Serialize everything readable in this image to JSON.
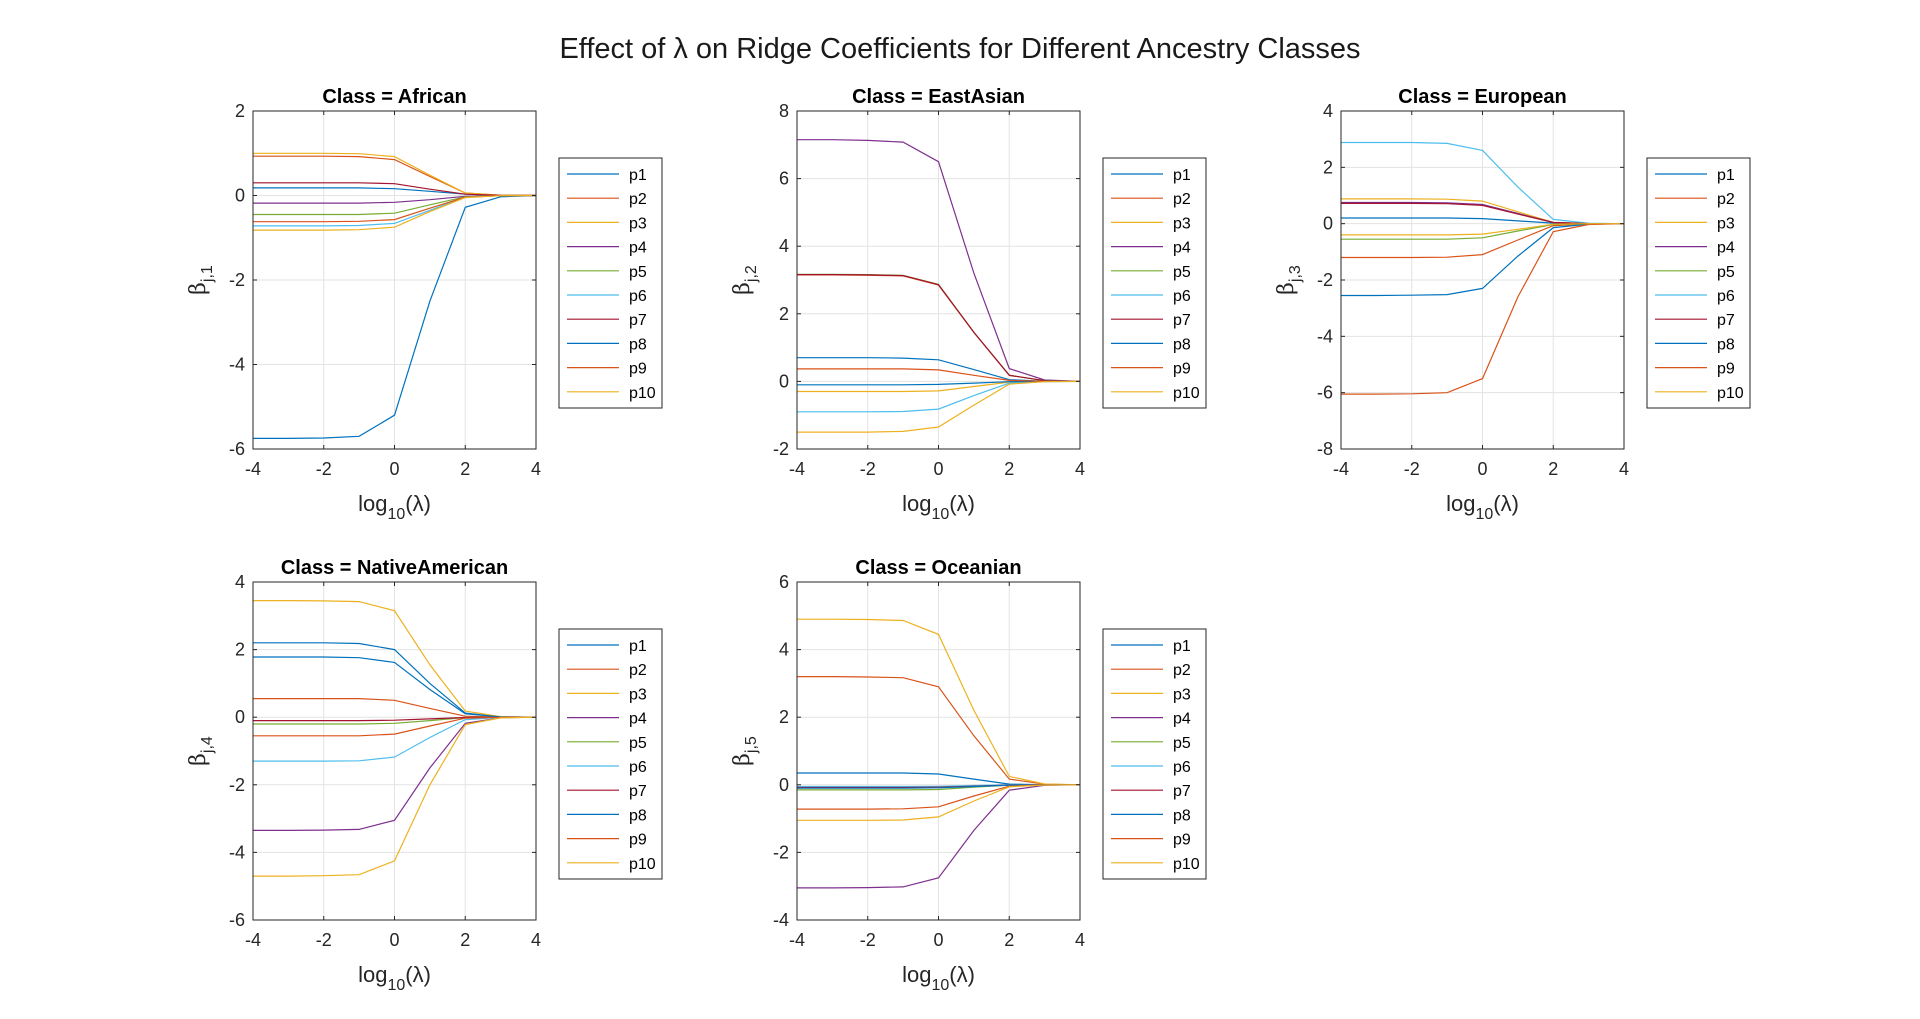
{
  "figure": {
    "title": "Effect of λ on Ridge Coefficients for Different Ancestry Classes"
  },
  "colors": {
    "p1": "#0072BD",
    "p2": "#D95319",
    "p3": "#EDB120",
    "p4": "#7E2F8E",
    "p5": "#77AC30",
    "p6": "#4DBEEE",
    "p7": "#A2142F",
    "p8": "#0072BD",
    "p9": "#D95319",
    "p10": "#EDB120"
  },
  "chart_data": [
    {
      "type": "line",
      "title": "Class = African",
      "xlabel": "log10(λ)",
      "ylabel": "βj,1",
      "ylabel_sub": "j,1",
      "xlim": [
        -4,
        4
      ],
      "ylim": [
        -6,
        2
      ],
      "xticks": [
        -4,
        -2,
        0,
        2,
        4
      ],
      "yticks": [
        -6,
        -4,
        -2,
        0,
        2
      ],
      "grid": true,
      "legend_position": "right-outside",
      "x": [
        -4,
        -3,
        -2,
        -1,
        0,
        1,
        2,
        3,
        4
      ],
      "series": [
        {
          "name": "p1",
          "values": [
            0.18,
            0.18,
            0.18,
            0.18,
            0.16,
            0.1,
            0.03,
            0.005,
            0
          ]
        },
        {
          "name": "p2",
          "values": [
            0.93,
            0.93,
            0.93,
            0.92,
            0.85,
            0.45,
            0.06,
            0.007,
            0
          ]
        },
        {
          "name": "p3",
          "values": [
            1.0,
            1.0,
            1.0,
            0.99,
            0.92,
            0.48,
            0.06,
            0.007,
            0
          ]
        },
        {
          "name": "p4",
          "values": [
            -0.18,
            -0.18,
            -0.18,
            -0.18,
            -0.16,
            -0.1,
            -0.02,
            -0.003,
            0
          ]
        },
        {
          "name": "p5",
          "values": [
            -0.45,
            -0.45,
            -0.45,
            -0.45,
            -0.42,
            -0.22,
            -0.03,
            -0.003,
            0
          ]
        },
        {
          "name": "p6",
          "values": [
            -0.72,
            -0.72,
            -0.72,
            -0.71,
            -0.66,
            -0.35,
            -0.04,
            -0.004,
            0
          ]
        },
        {
          "name": "p7",
          "values": [
            0.3,
            0.3,
            0.3,
            0.3,
            0.28,
            0.15,
            0.03,
            0.003,
            0
          ]
        },
        {
          "name": "p8",
          "values": [
            -5.75,
            -5.75,
            -5.74,
            -5.7,
            -5.2,
            -2.5,
            -0.28,
            -0.03,
            0
          ]
        },
        {
          "name": "p9",
          "values": [
            -0.62,
            -0.62,
            -0.62,
            -0.61,
            -0.57,
            -0.3,
            -0.04,
            -0.004,
            0
          ]
        },
        {
          "name": "p10",
          "values": [
            -0.82,
            -0.82,
            -0.82,
            -0.81,
            -0.75,
            -0.38,
            -0.05,
            -0.005,
            0
          ]
        }
      ]
    },
    {
      "type": "line",
      "title": "Class = EastAsian",
      "xlabel": "log10(λ)",
      "ylabel": "βj,2",
      "ylabel_sub": "j,2",
      "xlim": [
        -4,
        4
      ],
      "ylim": [
        -2,
        8
      ],
      "xticks": [
        -4,
        -2,
        0,
        2,
        4
      ],
      "yticks": [
        -2,
        0,
        2,
        4,
        6,
        8
      ],
      "grid": true,
      "legend_position": "right-outside",
      "x": [
        -4,
        -3,
        -2,
        -1,
        0,
        1,
        2,
        3,
        4
      ],
      "series": [
        {
          "name": "p1",
          "values": [
            0.7,
            0.7,
            0.7,
            0.69,
            0.64,
            0.35,
            0.05,
            0.005,
            0
          ]
        },
        {
          "name": "p2",
          "values": [
            3.15,
            3.15,
            3.14,
            3.12,
            2.85,
            1.45,
            0.18,
            0.02,
            0
          ]
        },
        {
          "name": "p3",
          "values": [
            -0.3,
            -0.3,
            -0.3,
            -0.3,
            -0.28,
            -0.15,
            -0.02,
            -0.002,
            0
          ]
        },
        {
          "name": "p4",
          "values": [
            7.15,
            7.15,
            7.13,
            7.08,
            6.5,
            3.2,
            0.38,
            0.04,
            0
          ]
        },
        {
          "name": "p5",
          "values": [
            3.17,
            3.17,
            3.16,
            3.14,
            2.87,
            1.45,
            0.18,
            0.02,
            0
          ]
        },
        {
          "name": "p6",
          "values": [
            -0.9,
            -0.9,
            -0.9,
            -0.89,
            -0.82,
            -0.42,
            -0.05,
            -0.005,
            0
          ]
        },
        {
          "name": "p7",
          "values": [
            3.16,
            3.16,
            3.15,
            3.13,
            2.86,
            1.45,
            0.18,
            0.02,
            0
          ]
        },
        {
          "name": "p8",
          "values": [
            -0.1,
            -0.1,
            -0.1,
            -0.1,
            -0.09,
            -0.05,
            -0.01,
            -0.001,
            0
          ]
        },
        {
          "name": "p9",
          "values": [
            0.37,
            0.37,
            0.37,
            0.37,
            0.34,
            0.18,
            0.03,
            0.003,
            0
          ]
        },
        {
          "name": "p10",
          "values": [
            -1.5,
            -1.5,
            -1.5,
            -1.48,
            -1.35,
            -0.7,
            -0.08,
            -0.008,
            0
          ]
        }
      ]
    },
    {
      "type": "line",
      "title": "Class = European",
      "xlabel": "log10(λ)",
      "ylabel": "βj,3",
      "ylabel_sub": "j,3",
      "xlim": [
        -4,
        4
      ],
      "ylim": [
        -8,
        4
      ],
      "xticks": [
        -4,
        -2,
        0,
        2,
        4
      ],
      "yticks": [
        -8,
        -6,
        -4,
        -2,
        0,
        2,
        4
      ],
      "grid": true,
      "legend_position": "right-outside",
      "x": [
        -4,
        -3,
        -2,
        -1,
        0,
        1,
        2,
        3,
        4
      ],
      "series": [
        {
          "name": "p1",
          "values": [
            0.2,
            0.2,
            0.2,
            0.2,
            0.18,
            0.1,
            0.02,
            0.002,
            0
          ]
        },
        {
          "name": "p2",
          "values": [
            -1.2,
            -1.2,
            -1.2,
            -1.19,
            -1.1,
            -0.58,
            -0.07,
            -0.007,
            0
          ]
        },
        {
          "name": "p3",
          "values": [
            0.88,
            0.88,
            0.88,
            0.87,
            0.8,
            0.42,
            0.05,
            0.005,
            0
          ]
        },
        {
          "name": "p4",
          "values": [
            0.75,
            0.75,
            0.75,
            0.74,
            0.68,
            0.36,
            0.04,
            0.004,
            0
          ]
        },
        {
          "name": "p5",
          "values": [
            -0.55,
            -0.55,
            -0.55,
            -0.55,
            -0.5,
            -0.26,
            -0.03,
            -0.003,
            0
          ]
        },
        {
          "name": "p6",
          "values": [
            2.88,
            2.88,
            2.88,
            2.85,
            2.6,
            1.3,
            0.15,
            0.015,
            0
          ]
        },
        {
          "name": "p7",
          "values": [
            0.72,
            0.72,
            0.72,
            0.71,
            0.65,
            0.34,
            0.04,
            0.004,
            0
          ]
        },
        {
          "name": "p8",
          "values": [
            -2.55,
            -2.55,
            -2.54,
            -2.52,
            -2.3,
            -1.15,
            -0.14,
            -0.014,
            0
          ]
        },
        {
          "name": "p9",
          "values": [
            -6.05,
            -6.05,
            -6.04,
            -6.0,
            -5.5,
            -2.6,
            -0.28,
            -0.03,
            0
          ]
        },
        {
          "name": "p10",
          "values": [
            -0.4,
            -0.4,
            -0.4,
            -0.4,
            -0.37,
            -0.2,
            -0.02,
            -0.002,
            0
          ]
        }
      ]
    },
    {
      "type": "line",
      "title": "Class = NativeAmerican",
      "xlabel": "log10(λ)",
      "ylabel": "βj,4",
      "ylabel_sub": "j,4",
      "xlim": [
        -4,
        4
      ],
      "ylim": [
        -6,
        4
      ],
      "xticks": [
        -4,
        -2,
        0,
        2,
        4
      ],
      "yticks": [
        -6,
        -4,
        -2,
        0,
        2,
        4
      ],
      "grid": true,
      "legend_position": "right-outside",
      "x": [
        -4,
        -3,
        -2,
        -1,
        0,
        1,
        2,
        3,
        4
      ],
      "series": [
        {
          "name": "p1",
          "values": [
            2.2,
            2.2,
            2.2,
            2.18,
            2.0,
            1.0,
            0.12,
            0.012,
            0
          ]
        },
        {
          "name": "p2",
          "values": [
            0.55,
            0.55,
            0.55,
            0.55,
            0.5,
            0.26,
            0.03,
            0.003,
            0
          ]
        },
        {
          "name": "p3",
          "values": [
            3.45,
            3.45,
            3.44,
            3.42,
            3.15,
            1.55,
            0.18,
            0.018,
            0
          ]
        },
        {
          "name": "p4",
          "values": [
            -3.35,
            -3.35,
            -3.34,
            -3.32,
            -3.05,
            -1.5,
            -0.18,
            -0.018,
            0
          ]
        },
        {
          "name": "p5",
          "values": [
            -0.2,
            -0.2,
            -0.2,
            -0.2,
            -0.18,
            -0.1,
            -0.01,
            -0.001,
            0
          ]
        },
        {
          "name": "p6",
          "values": [
            -1.3,
            -1.3,
            -1.3,
            -1.29,
            -1.18,
            -0.6,
            -0.07,
            -0.007,
            0
          ]
        },
        {
          "name": "p7",
          "values": [
            -0.1,
            -0.1,
            -0.1,
            -0.1,
            -0.09,
            -0.05,
            -0.01,
            -0.001,
            0
          ]
        },
        {
          "name": "p8",
          "values": [
            1.78,
            1.78,
            1.78,
            1.76,
            1.62,
            0.82,
            0.1,
            0.01,
            0
          ]
        },
        {
          "name": "p9",
          "values": [
            -0.55,
            -0.55,
            -0.55,
            -0.55,
            -0.5,
            -0.26,
            -0.03,
            -0.003,
            0
          ]
        },
        {
          "name": "p10",
          "values": [
            -4.7,
            -4.7,
            -4.69,
            -4.66,
            -4.25,
            -2.0,
            -0.22,
            -0.022,
            0
          ]
        }
      ]
    },
    {
      "type": "line",
      "title": "Class = Oceanian",
      "xlabel": "log10(λ)",
      "ylabel": "βj,5",
      "ylabel_sub": "j,5",
      "xlim": [
        -4,
        4
      ],
      "ylim": [
        -4,
        6
      ],
      "xticks": [
        -4,
        -2,
        0,
        2,
        4
      ],
      "yticks": [
        -4,
        -2,
        0,
        2,
        4,
        6
      ],
      "grid": true,
      "legend_position": "right-outside",
      "x": [
        -4,
        -3,
        -2,
        -1,
        0,
        1,
        2,
        3,
        4
      ],
      "series": [
        {
          "name": "p1",
          "values": [
            0.35,
            0.35,
            0.35,
            0.35,
            0.32,
            0.17,
            0.02,
            0.002,
            0
          ]
        },
        {
          "name": "p2",
          "values": [
            3.2,
            3.2,
            3.19,
            3.17,
            2.9,
            1.45,
            0.17,
            0.017,
            0
          ]
        },
        {
          "name": "p3",
          "values": [
            4.9,
            4.9,
            4.89,
            4.86,
            4.45,
            2.2,
            0.25,
            0.025,
            0
          ]
        },
        {
          "name": "p4",
          "values": [
            -3.05,
            -3.05,
            -3.04,
            -3.02,
            -2.75,
            -1.35,
            -0.16,
            -0.016,
            0
          ]
        },
        {
          "name": "p5",
          "values": [
            -0.15,
            -0.15,
            -0.15,
            -0.15,
            -0.14,
            -0.07,
            -0.01,
            -0.001,
            0
          ]
        },
        {
          "name": "p6",
          "values": [
            -0.05,
            -0.05,
            -0.05,
            -0.05,
            -0.045,
            -0.02,
            0.0,
            0.0,
            0
          ]
        },
        {
          "name": "p7",
          "values": [
            -0.08,
            -0.08,
            -0.08,
            -0.08,
            -0.07,
            -0.04,
            -0.005,
            0.0,
            0
          ]
        },
        {
          "name": "p8",
          "values": [
            -0.1,
            -0.1,
            -0.1,
            -0.1,
            -0.09,
            -0.05,
            -0.01,
            -0.001,
            0
          ]
        },
        {
          "name": "p9",
          "values": [
            -0.72,
            -0.72,
            -0.72,
            -0.71,
            -0.65,
            -0.33,
            -0.04,
            -0.004,
            0
          ]
        },
        {
          "name": "p10",
          "values": [
            -1.05,
            -1.05,
            -1.05,
            -1.04,
            -0.95,
            -0.48,
            -0.06,
            -0.006,
            0
          ]
        }
      ]
    }
  ]
}
